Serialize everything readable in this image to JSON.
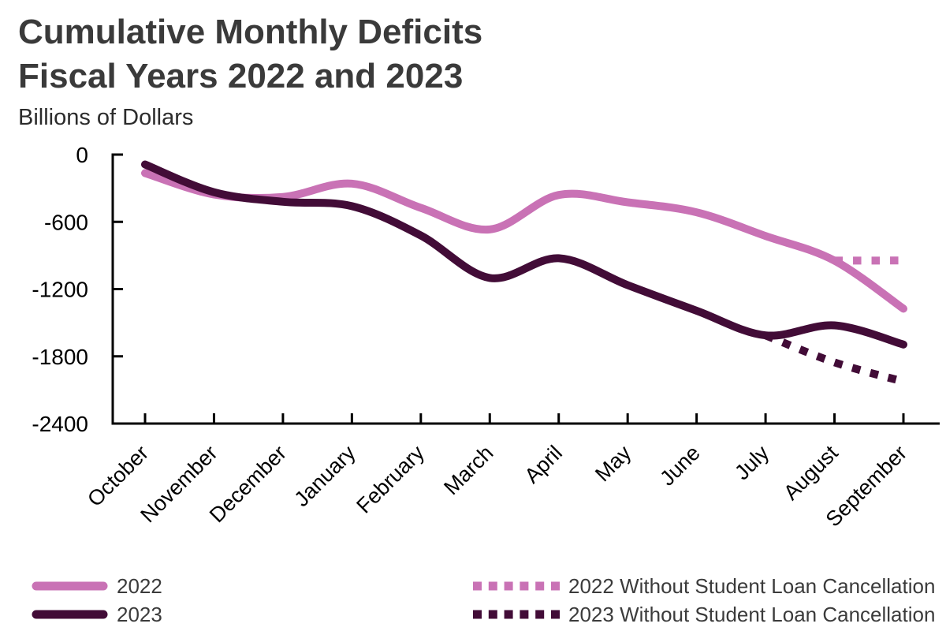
{
  "header": {
    "title_line1": "Cumulative Monthly Deficits",
    "title_line2": "Fiscal Years 2022 and 2023",
    "subtitle": "Billions of Dollars"
  },
  "colors": {
    "fy2022_pink": "#c972b5",
    "fy2023_dark": "#420c37",
    "title_text": "#3a3a3a",
    "axis": "#000000",
    "legend_text": "#3b3b3b"
  },
  "chart_data": {
    "type": "line",
    "title": "Cumulative Monthly Deficits Fiscal Years 2022 and 2023",
    "ylabel": "Billions of Dollars",
    "xlabel": "",
    "grid": false,
    "legend_position": "bottom",
    "ylim": [
      -2400,
      0
    ],
    "yticks": [
      0,
      -600,
      -1200,
      -1800,
      -2400
    ],
    "x_categories": [
      "October",
      "November",
      "December",
      "January",
      "February",
      "March",
      "April",
      "May",
      "June",
      "July",
      "August",
      "September"
    ],
    "series": [
      {
        "name": "2022",
        "style": "solid",
        "color": "#c972b5",
        "values": [
          -165,
          -356,
          -378,
          -259,
          -475,
          -668,
          -360,
          -426,
          -515,
          -726,
          -946,
          -1375
        ]
      },
      {
        "name": "2023",
        "style": "solid",
        "color": "#420c37",
        "values": [
          -88,
          -336,
          -421,
          -460,
          -722,
          -1101,
          -925,
          -1165,
          -1393,
          -1613,
          -1524,
          -1695
        ]
      },
      {
        "name": "2022 Without Student Loan Cancellation",
        "style": "dotted",
        "color": "#c972b5",
        "values": [
          null,
          null,
          null,
          null,
          null,
          null,
          null,
          null,
          null,
          null,
          -946,
          -945
        ]
      },
      {
        "name": "2023 Without Student Loan Cancellation",
        "style": "dotted",
        "color": "#420c37",
        "values": [
          null,
          null,
          null,
          null,
          null,
          null,
          null,
          null,
          null,
          -1613,
          -1854,
          -2025
        ]
      }
    ],
    "legend": [
      {
        "label": "2022",
        "style": "solid",
        "color": "#c972b5"
      },
      {
        "label": "2023",
        "style": "solid",
        "color": "#420c37"
      },
      {
        "label": "2022 Without Student Loan Cancellation",
        "style": "dotted",
        "color": "#c972b5"
      },
      {
        "label": "2023 Without Student Loan Cancellation",
        "style": "dotted",
        "color": "#420c37"
      }
    ]
  }
}
